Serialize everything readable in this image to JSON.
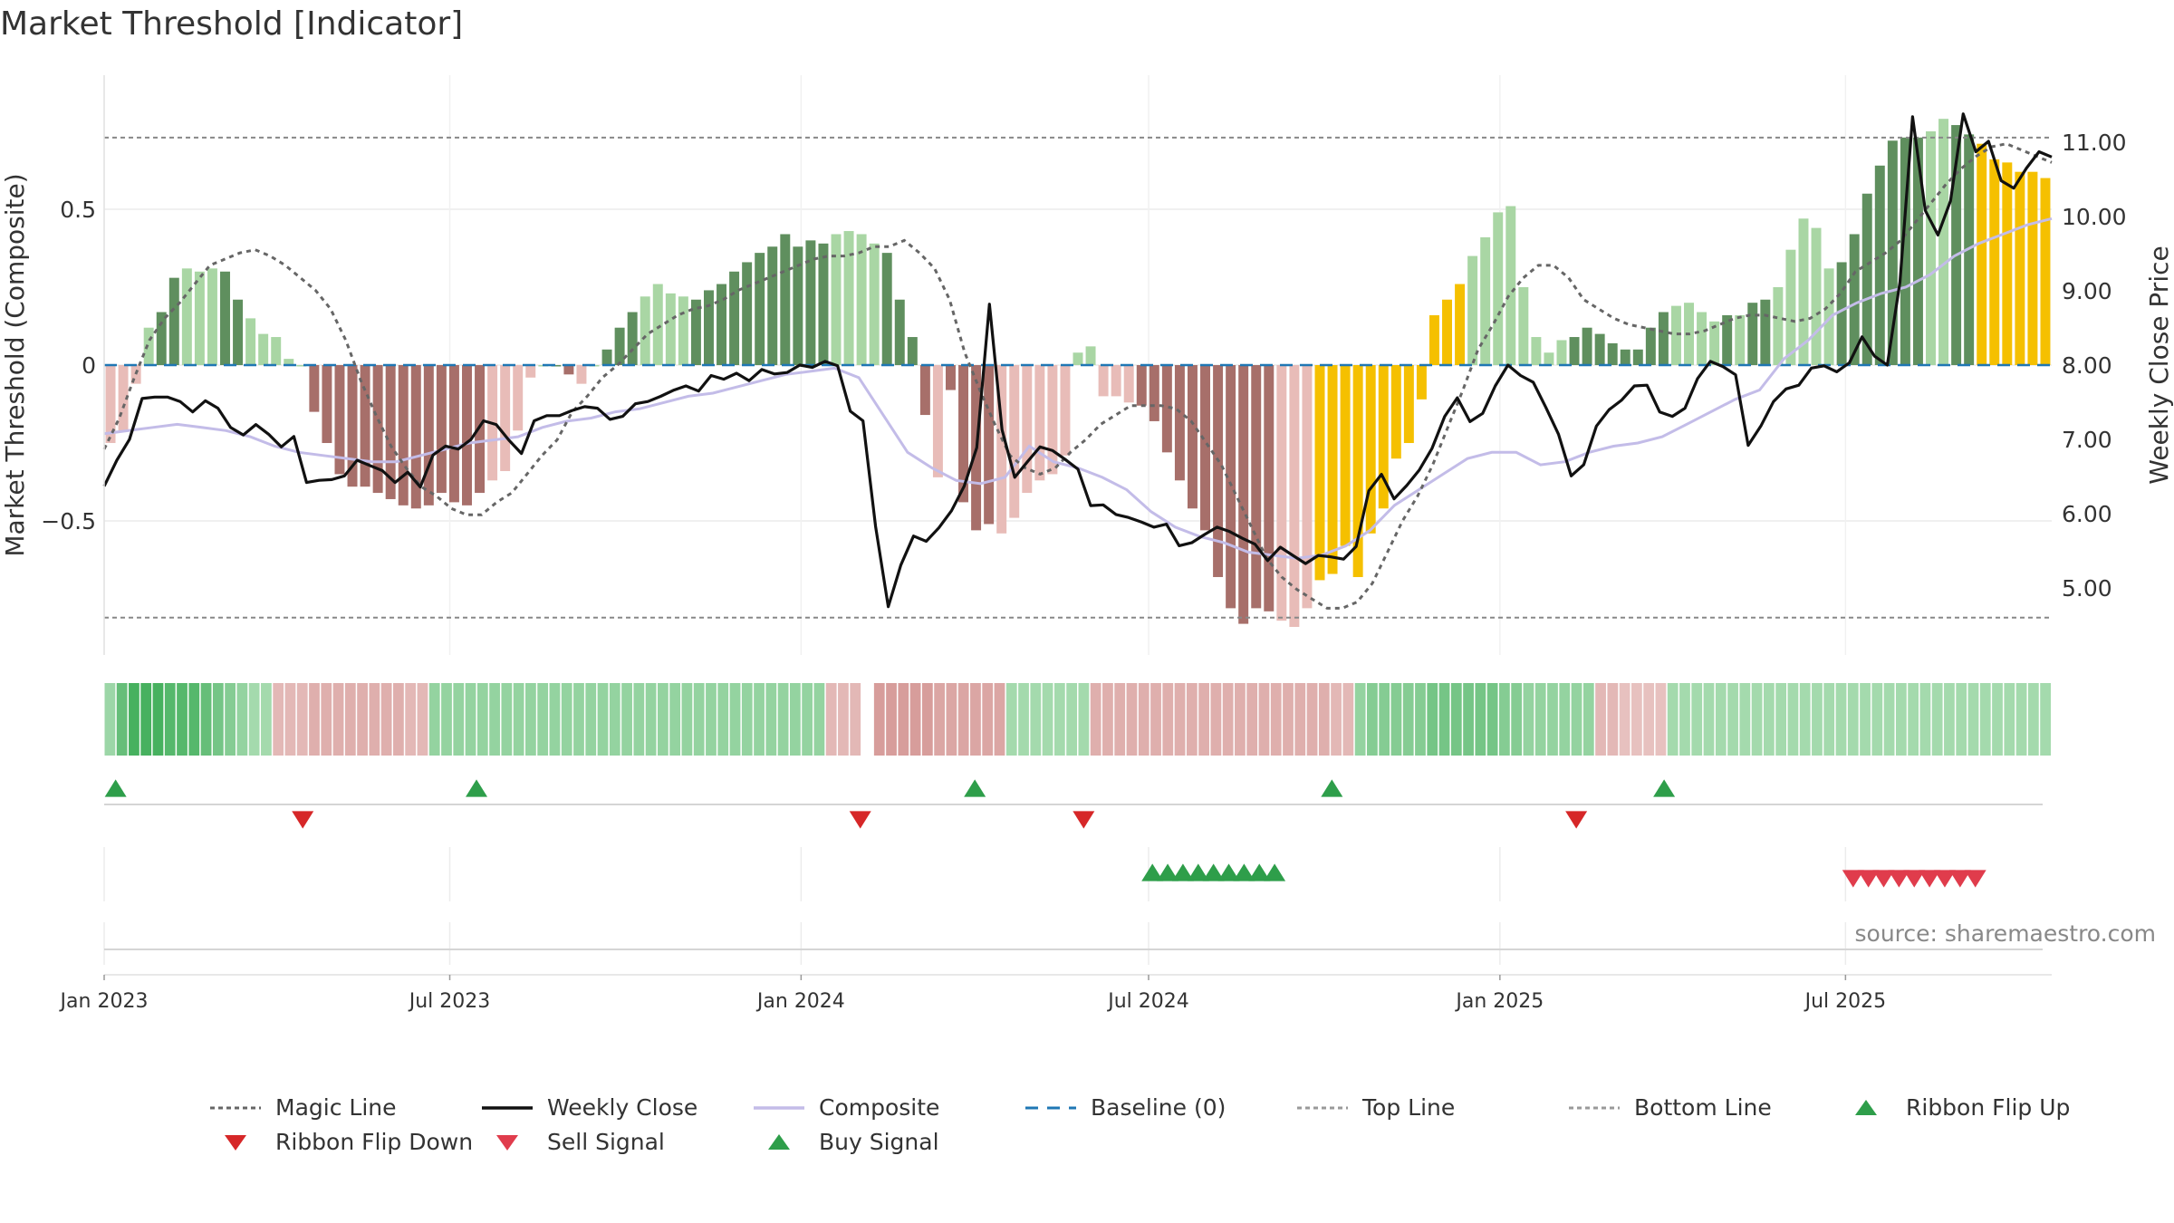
{
  "title": "Market Threshold [Indicator]",
  "source": "source: sharemaestro.com",
  "chart_data": {
    "type": "bar+line",
    "left_axis": {
      "label": "Market Threshold (Composite)",
      "ticks": [
        "0.5",
        "0",
        "−0.5"
      ],
      "tick_values": [
        0.5,
        0,
        -0.5
      ],
      "range": [
        -0.93,
        0.93
      ]
    },
    "right_axis": {
      "label": "Weekly Close Price",
      "ticks": [
        "11.00",
        "10.00",
        "9.00",
        "8.00",
        "7.00",
        "6.00",
        "5.00"
      ],
      "tick_values": [
        11,
        10,
        9,
        8,
        7,
        6,
        5
      ],
      "range": [
        4.1,
        11.9
      ]
    },
    "x_axis": {
      "ticks": [
        "Jan 2023",
        "Jul 2023",
        "Jan 2024",
        "Jul 2024",
        "Jan 2025",
        "Jul 2025"
      ],
      "start": "2023-01-01",
      "end": "2025-10-17"
    },
    "reference_lines": {
      "top_line": 0.73,
      "bottom_line": -0.81,
      "baseline": 0
    },
    "bar_colors": {
      "strong_up": "#5f8f5e",
      "weak_up": "#a9d6a4",
      "strong_down": "#a76f6a",
      "weak_down": "#e8bcb8",
      "extreme": "#f5c000"
    },
    "composite_bars": [
      -0.25,
      -0.21,
      -0.06,
      0.12,
      0.17,
      0.28,
      0.31,
      0.3,
      0.31,
      0.3,
      0.21,
      0.15,
      0.1,
      0.09,
      0.02,
      0.0,
      -0.15,
      -0.25,
      -0.35,
      -0.39,
      -0.39,
      -0.41,
      -0.43,
      -0.45,
      -0.46,
      -0.45,
      -0.41,
      -0.44,
      -0.45,
      -0.41,
      -0.37,
      -0.34,
      -0.21,
      -0.04,
      0.0,
      0.0,
      -0.03,
      -0.06,
      0.0,
      0.05,
      0.12,
      0.17,
      0.22,
      0.26,
      0.23,
      0.22,
      0.21,
      0.24,
      0.26,
      0.3,
      0.33,
      0.36,
      0.38,
      0.42,
      0.38,
      0.4,
      0.39,
      0.42,
      0.43,
      0.42,
      0.39,
      0.36,
      0.21,
      0.09,
      -0.16,
      -0.36,
      -0.08,
      -0.44,
      -0.53,
      -0.51,
      -0.54,
      -0.49,
      -0.41,
      -0.37,
      -0.35,
      -0.29,
      0.04,
      0.06,
      -0.1,
      -0.1,
      -0.12,
      -0.13,
      -0.18,
      -0.28,
      -0.37,
      -0.46,
      -0.53,
      -0.68,
      -0.78,
      -0.83,
      -0.78,
      -0.79,
      -0.82,
      -0.84,
      -0.78,
      -0.69,
      -0.67,
      -0.58,
      -0.68,
      -0.54,
      -0.46,
      -0.3,
      -0.25,
      -0.11,
      0.16,
      0.21,
      0.26,
      0.35,
      0.41,
      0.49,
      0.51,
      0.25,
      0.09,
      0.04,
      0.08,
      0.09,
      0.12,
      0.1,
      0.07,
      0.05,
      0.05,
      0.12,
      0.17,
      0.19,
      0.2,
      0.17,
      0.14,
      0.16,
      0.16,
      0.2,
      0.21,
      0.25,
      0.37,
      0.47,
      0.44,
      0.31,
      0.33,
      0.42,
      0.55,
      0.64,
      0.72,
      0.73,
      0.73,
      0.75,
      0.79,
      0.77,
      0.74,
      0.71,
      0.66,
      0.65,
      0.62,
      0.62,
      0.6
    ],
    "bar_classes": "wwwwsswwwsswwwwwsssssssssssssswwwwwsswwssswwwwssssssssssswwwwsssswsssswwwwwwwwwwwssssssssssswwwyyyyyyyyyyyywwwwwwwwsssssssswwwwswsswwwwwssssssswwssyyyyyyyywwww",
    "weekly_close": [
      6.37,
      6.72,
      7.0,
      7.55,
      7.57,
      7.57,
      7.51,
      7.37,
      7.52,
      7.42,
      7.16,
      7.06,
      7.2,
      7.07,
      6.9,
      7.04,
      6.42,
      6.45,
      6.46,
      6.51,
      6.72,
      6.65,
      6.58,
      6.42,
      6.56,
      6.36,
      6.79,
      6.91,
      6.87,
      7.0,
      7.25,
      7.2,
      6.99,
      6.81,
      7.25,
      7.32,
      7.32,
      7.39,
      7.44,
      7.42,
      7.27,
      7.31,
      7.48,
      7.51,
      7.58,
      7.66,
      7.72,
      7.65,
      7.86,
      7.81,
      7.89,
      7.79,
      7.94,
      7.88,
      7.9,
      8.0,
      7.97,
      8.05,
      7.99,
      7.38,
      7.25,
      5.83,
      4.75,
      5.31,
      5.7,
      5.63,
      5.81,
      6.04,
      6.37,
      6.89,
      8.82,
      7.13,
      6.49,
      6.7,
      6.9,
      6.85,
      6.73,
      6.6,
      6.11,
      6.12,
      5.99,
      5.95,
      5.89,
      5.82,
      5.86,
      5.57,
      5.61,
      5.72,
      5.82,
      5.76,
      5.67,
      5.59,
      5.37,
      5.55,
      5.44,
      5.33,
      5.44,
      5.42,
      5.39,
      5.56,
      6.31,
      6.53,
      6.2,
      6.38,
      6.59,
      6.88,
      7.31,
      7.56,
      7.24,
      7.35,
      7.72,
      8.0,
      7.86,
      7.77,
      7.43,
      7.07,
      6.51,
      6.66,
      7.18,
      7.4,
      7.53,
      7.72,
      7.73,
      7.37,
      7.31,
      7.42,
      7.82,
      8.05,
      7.98,
      7.87,
      6.92,
      7.18,
      7.51,
      7.68,
      7.73,
      7.96,
      7.99,
      7.91,
      8.03,
      8.38,
      8.12,
      8.0,
      9.12,
      11.34,
      10.08,
      9.75,
      10.21,
      11.38,
      10.87,
      11.01,
      10.48,
      10.38,
      10.65,
      10.87,
      10.8
    ],
    "magic_line": [
      -0.27,
      -0.17,
      -0.04,
      0.08,
      0.15,
      0.2,
      0.26,
      0.32,
      0.34,
      0.36,
      0.37,
      0.35,
      0.32,
      0.28,
      0.24,
      0.18,
      0.08,
      -0.05,
      -0.16,
      -0.26,
      -0.33,
      -0.39,
      -0.42,
      -0.46,
      -0.48,
      -0.48,
      -0.44,
      -0.41,
      -0.35,
      -0.29,
      -0.24,
      -0.15,
      -0.1,
      -0.04,
      0.0,
      0.05,
      0.1,
      0.13,
      0.16,
      0.18,
      0.19,
      0.21,
      0.24,
      0.26,
      0.28,
      0.3,
      0.32,
      0.34,
      0.35,
      0.35,
      0.36,
      0.38,
      0.38,
      0.4,
      0.36,
      0.31,
      0.21,
      0.04,
      -0.08,
      -0.19,
      -0.29,
      -0.33,
      -0.35,
      -0.33,
      -0.28,
      -0.24,
      -0.19,
      -0.16,
      -0.13,
      -0.13,
      -0.13,
      -0.14,
      -0.18,
      -0.25,
      -0.32,
      -0.42,
      -0.52,
      -0.62,
      -0.68,
      -0.72,
      -0.75,
      -0.78,
      -0.78,
      -0.76,
      -0.7,
      -0.6,
      -0.5,
      -0.42,
      -0.32,
      -0.2,
      -0.08,
      0.05,
      0.13,
      0.22,
      0.28,
      0.32,
      0.32,
      0.28,
      0.21,
      0.18,
      0.15,
      0.13,
      0.12,
      0.11,
      0.1,
      0.1,
      0.11,
      0.13,
      0.15,
      0.16,
      0.16,
      0.15,
      0.14,
      0.15,
      0.18,
      0.23,
      0.3,
      0.33,
      0.36,
      0.4,
      0.46,
      0.52,
      0.58,
      0.63,
      0.67,
      0.7,
      0.71,
      0.69,
      0.67,
      0.65
    ],
    "composite_line": [
      -0.22,
      -0.21,
      -0.2,
      -0.19,
      -0.2,
      -0.21,
      -0.23,
      -0.26,
      -0.28,
      -0.29,
      -0.3,
      -0.31,
      -0.31,
      -0.29,
      -0.27,
      -0.25,
      -0.24,
      -0.23,
      -0.2,
      -0.18,
      -0.17,
      -0.15,
      -0.14,
      -0.12,
      -0.1,
      -0.09,
      -0.07,
      -0.05,
      -0.03,
      -0.02,
      -0.01,
      -0.04,
      -0.16,
      -0.28,
      -0.33,
      -0.37,
      -0.38,
      -0.36,
      -0.26,
      -0.31,
      -0.33,
      -0.36,
      -0.4,
      -0.47,
      -0.52,
      -0.55,
      -0.57,
      -0.6,
      -0.61,
      -0.62,
      -0.61,
      -0.58,
      -0.53,
      -0.45,
      -0.4,
      -0.35,
      -0.3,
      -0.28,
      -0.28,
      -0.32,
      -0.31,
      -0.28,
      -0.26,
      -0.25,
      -0.23,
      -0.19,
      -0.15,
      -0.11,
      -0.08,
      0.02,
      0.08,
      0.16,
      0.2,
      0.23,
      0.25,
      0.29,
      0.35,
      0.39,
      0.42,
      0.45,
      0.47
    ],
    "ribbon_values": [
      0.35,
      0.7,
      0.9,
      0.9,
      0.9,
      0.8,
      0.8,
      0.8,
      0.7,
      0.6,
      0.5,
      0.4,
      0.3,
      0.3,
      -0.4,
      -0.4,
      -0.4,
      -0.5,
      -0.5,
      -0.5,
      -0.5,
      -0.5,
      -0.5,
      -0.5,
      -0.5,
      -0.4,
      -0.4,
      0.4,
      0.4,
      0.4,
      0.4,
      0.4,
      0.4,
      0.4,
      0.4,
      0.4,
      0.4,
      0.4,
      0.4,
      0.4,
      0.4,
      0.4,
      0.4,
      0.4,
      0.4,
      0.4,
      0.4,
      0.4,
      0.4,
      0.4,
      0.4,
      0.4,
      0.4,
      0.4,
      0.4,
      0.4,
      0.4,
      0.4,
      0.4,
      0.4,
      -0.4,
      -0.4,
      -0.4,
      0,
      -0.7,
      -0.7,
      -0.7,
      -0.7,
      -0.7,
      -0.6,
      -0.6,
      -0.6,
      -0.6,
      -0.6,
      -0.6,
      0.3,
      0.3,
      0.3,
      0.3,
      0.3,
      0.3,
      0.3,
      -0.5,
      -0.5,
      -0.5,
      -0.5,
      -0.5,
      -0.5,
      -0.5,
      -0.5,
      -0.5,
      -0.5,
      -0.5,
      -0.5,
      -0.5,
      -0.5,
      -0.5,
      -0.5,
      -0.5,
      -0.5,
      -0.5,
      -0.5,
      -0.4,
      -0.4,
      0.4,
      0.5,
      0.5,
      0.5,
      0.5,
      0.5,
      0.6,
      0.6,
      0.6,
      0.6,
      0.6,
      0.6,
      0.5,
      0.5,
      0.4,
      0.4,
      0.4,
      0.4,
      0.4,
      0.4,
      -0.4,
      -0.4,
      -0.3,
      -0.3,
      -0.3,
      -0.3,
      0.3,
      0.3,
      0.3,
      0.3,
      0.3,
      0.3,
      0.3,
      0.3,
      0.3,
      0.3,
      0.3,
      0.3,
      0.3,
      0.3,
      0.3,
      0.3,
      0.3,
      0.3,
      0.3,
      0.3,
      0.3,
      0.3,
      0.3,
      0.3,
      0.3,
      0.3,
      0.3,
      0.3,
      0.3,
      0.3,
      0.3,
      0.3
    ],
    "ribbon_flip_up": [
      "2023-01-07",
      "2023-07-15",
      "2024-04-01",
      "2024-10-05",
      "2025-03-28"
    ],
    "ribbon_flip_down": [
      "2023-04-15",
      "2024-02-01",
      "2024-05-28",
      "2025-02-10"
    ],
    "buy_signals": [
      "2024-07-03",
      "2024-07-11",
      "2024-07-19",
      "2024-07-27",
      "2024-08-04",
      "2024-08-12",
      "2024-08-20",
      "2024-08-28",
      "2024-09-05"
    ],
    "sell_signals": [
      "2025-07-05",
      "2025-07-13",
      "2025-07-21",
      "2025-07-29",
      "2025-08-06",
      "2025-08-14",
      "2025-08-22",
      "2025-08-30",
      "2025-09-07"
    ]
  },
  "legend": [
    {
      "label": "Magic Line",
      "icon": "dotted-line",
      "color": "#666666"
    },
    {
      "label": "Weekly Close",
      "icon": "solid-line",
      "color": "#111111"
    },
    {
      "label": "Composite",
      "icon": "solid-line",
      "color": "#c3bce8"
    },
    {
      "label": "Baseline (0)",
      "icon": "dashed-line",
      "color": "#1f77b4"
    },
    {
      "label": "Top Line",
      "icon": "dotted-line",
      "color": "#999999"
    },
    {
      "label": "Bottom Line",
      "icon": "dotted-line",
      "color": "#999999"
    },
    {
      "label": "Ribbon Flip Up",
      "icon": "triangle-up",
      "color": "#2e9e4a"
    },
    {
      "label": "Ribbon Flip Down",
      "icon": "triangle-down",
      "color": "#d62728"
    },
    {
      "label": "Sell Signal",
      "icon": "triangle-down",
      "color": "#e03c4c"
    },
    {
      "label": "Buy Signal",
      "icon": "triangle-up",
      "color": "#2e9e4a"
    }
  ]
}
